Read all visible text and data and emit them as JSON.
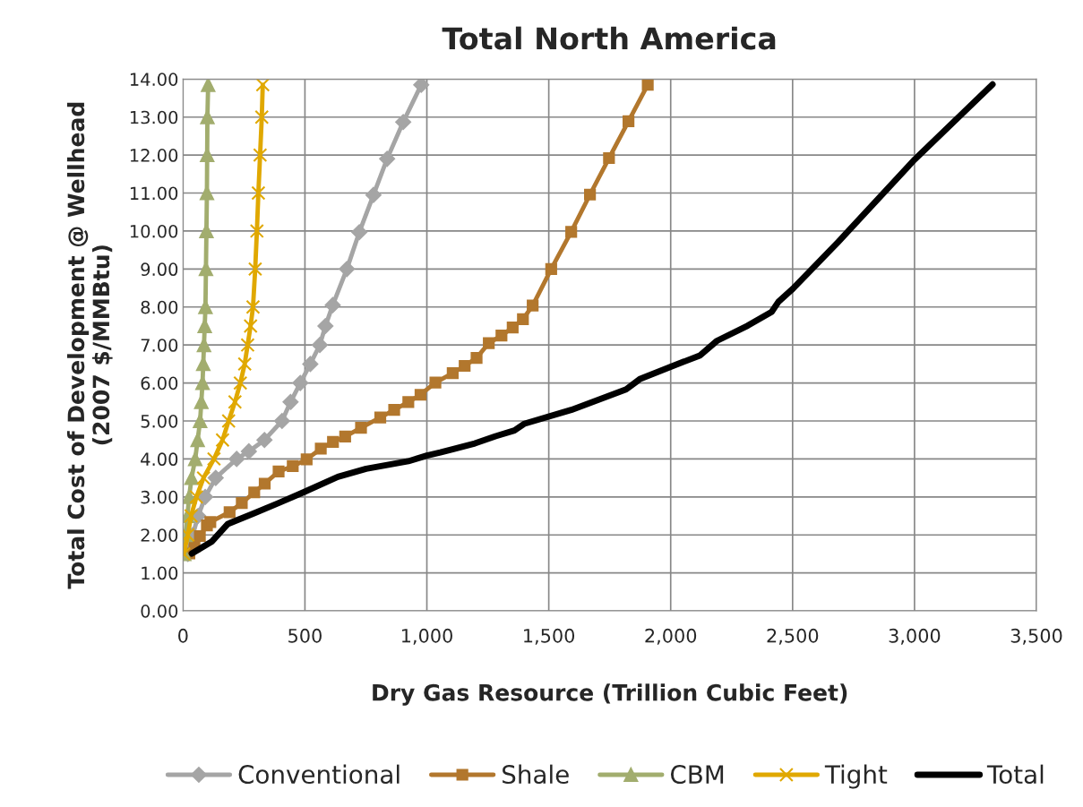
{
  "chart_data": {
    "type": "line",
    "title": "Total North America",
    "xlabel": "Dry Gas Resource (Trillion Cubic Feet)",
    "ylabel": "Total Cost of Development @ Wellhead\n(2007 $/MMBtu)",
    "xlim": [
      0,
      3500
    ],
    "ylim": [
      0,
      14
    ],
    "xticks": [
      0,
      500,
      {
        "value": 1000,
        "label": "1,000"
      },
      {
        "value": 1500,
        "label": "1,500"
      },
      {
        "value": 2000,
        "label": "2,000"
      },
      {
        "value": 2500,
        "label": "2,500"
      },
      {
        "value": 3000,
        "label": "3,000"
      },
      {
        "value": 3500,
        "label": "3,500"
      }
    ],
    "yticks": [
      {
        "value": 0,
        "label": "0.00"
      },
      {
        "value": 1,
        "label": "1.00"
      },
      {
        "value": 2,
        "label": "2.00"
      },
      {
        "value": 3,
        "label": "3.00"
      },
      {
        "value": 4,
        "label": "4.00"
      },
      {
        "value": 5,
        "label": "5.00"
      },
      {
        "value": 6,
        "label": "6.00"
      },
      {
        "value": 7,
        "label": "7.00"
      },
      {
        "value": 8,
        "label": "8.00"
      },
      {
        "value": 9,
        "label": "9.00"
      },
      {
        "value": 10,
        "label": "10.00"
      },
      {
        "value": 11,
        "label": "11.00"
      },
      {
        "value": 12,
        "label": "12.00"
      },
      {
        "value": 13,
        "label": "13.00"
      },
      {
        "value": 14,
        "label": "14.00"
      }
    ],
    "grid": true,
    "legend": "bottom",
    "line_style": "solid",
    "series": [
      {
        "name": "Conventional",
        "color": "#a5a5a5",
        "marker": "diamond",
        "x": [
          20,
          40,
          62,
          91,
          134,
          220,
          270,
          334,
          406,
          441,
          481,
          522,
          561,
          584,
          614,
          672,
          723,
          781,
          837,
          903,
          977
        ],
        "values": [
          1.5,
          2.0,
          2.5,
          3.0,
          3.5,
          4.0,
          4.2,
          4.5,
          5.0,
          5.5,
          6.0,
          6.5,
          7.0,
          7.5,
          8.05,
          9.0,
          9.97,
          10.95,
          11.9,
          12.87,
          13.85
        ]
      },
      {
        "name": "Shale",
        "color": "#b2772d",
        "marker": "square",
        "x": [
          26,
          47,
          69,
          98,
          112,
          191,
          241,
          292,
          335,
          392,
          450,
          507,
          565,
          615,
          665,
          730,
          809,
          866,
          924,
          974,
          1035,
          1106,
          1155,
          1204,
          1254,
          1306,
          1352,
          1394,
          1434,
          1510,
          1592,
          1669,
          1747,
          1827,
          1906
        ],
        "values": [
          1.51,
          1.7,
          1.97,
          2.25,
          2.34,
          2.6,
          2.84,
          3.12,
          3.35,
          3.67,
          3.81,
          3.99,
          4.27,
          4.45,
          4.59,
          4.82,
          5.09,
          5.29,
          5.5,
          5.69,
          6.01,
          6.26,
          6.45,
          6.66,
          7.05,
          7.25,
          7.46,
          7.68,
          8.04,
          9.0,
          9.98,
          10.96,
          11.92,
          12.89,
          13.85
        ]
      },
      {
        "name": "CBM",
        "color": "#a2ad6e",
        "marker": "triangle",
        "x": [
          5,
          10,
          18,
          25,
          35,
          50,
          60,
          70,
          75,
          80,
          83,
          86,
          89,
          92,
          94,
          96,
          98,
          99,
          100,
          103
        ],
        "values": [
          1.5,
          2.0,
          2.5,
          3.0,
          3.5,
          4.0,
          4.5,
          5.0,
          5.5,
          6.0,
          6.5,
          7.0,
          7.5,
          8.0,
          9.0,
          10.0,
          11.0,
          12.0,
          13.0,
          13.85
        ]
      },
      {
        "name": "Tight",
        "color": "#e0a800",
        "marker": "cross",
        "x": [
          3,
          20,
          33,
          55,
          84,
          127,
          162,
          187,
          213,
          235,
          253,
          265,
          277,
          287,
          296,
          303,
          309,
          316,
          323,
          327
        ],
        "values": [
          1.5,
          2.0,
          2.5,
          3.0,
          3.5,
          4.0,
          4.5,
          5.0,
          5.5,
          6.0,
          6.5,
          7.0,
          7.5,
          8.0,
          9.0,
          10.0,
          11.0,
          12.0,
          13.0,
          13.85
        ]
      },
      {
        "name": "Total",
        "color": "#000000",
        "marker": "none",
        "x": [
          36,
          119,
          184,
          292,
          392,
          493,
          635,
          751,
          924,
          1000,
          1055,
          1197,
          1282,
          1359,
          1401,
          1592,
          1817,
          1867,
          1873,
          2021,
          2119,
          2190,
          2316,
          2414,
          2442,
          2501,
          2688,
          3000,
          3320
        ],
        "values": [
          1.51,
          1.83,
          2.29,
          2.57,
          2.84,
          3.12,
          3.53,
          3.74,
          3.94,
          4.09,
          4.17,
          4.41,
          4.6,
          4.75,
          4.93,
          5.29,
          5.83,
          6.07,
          6.1,
          6.48,
          6.72,
          7.11,
          7.51,
          7.87,
          8.14,
          8.48,
          9.72,
          11.88,
          13.86
        ]
      }
    ]
  }
}
